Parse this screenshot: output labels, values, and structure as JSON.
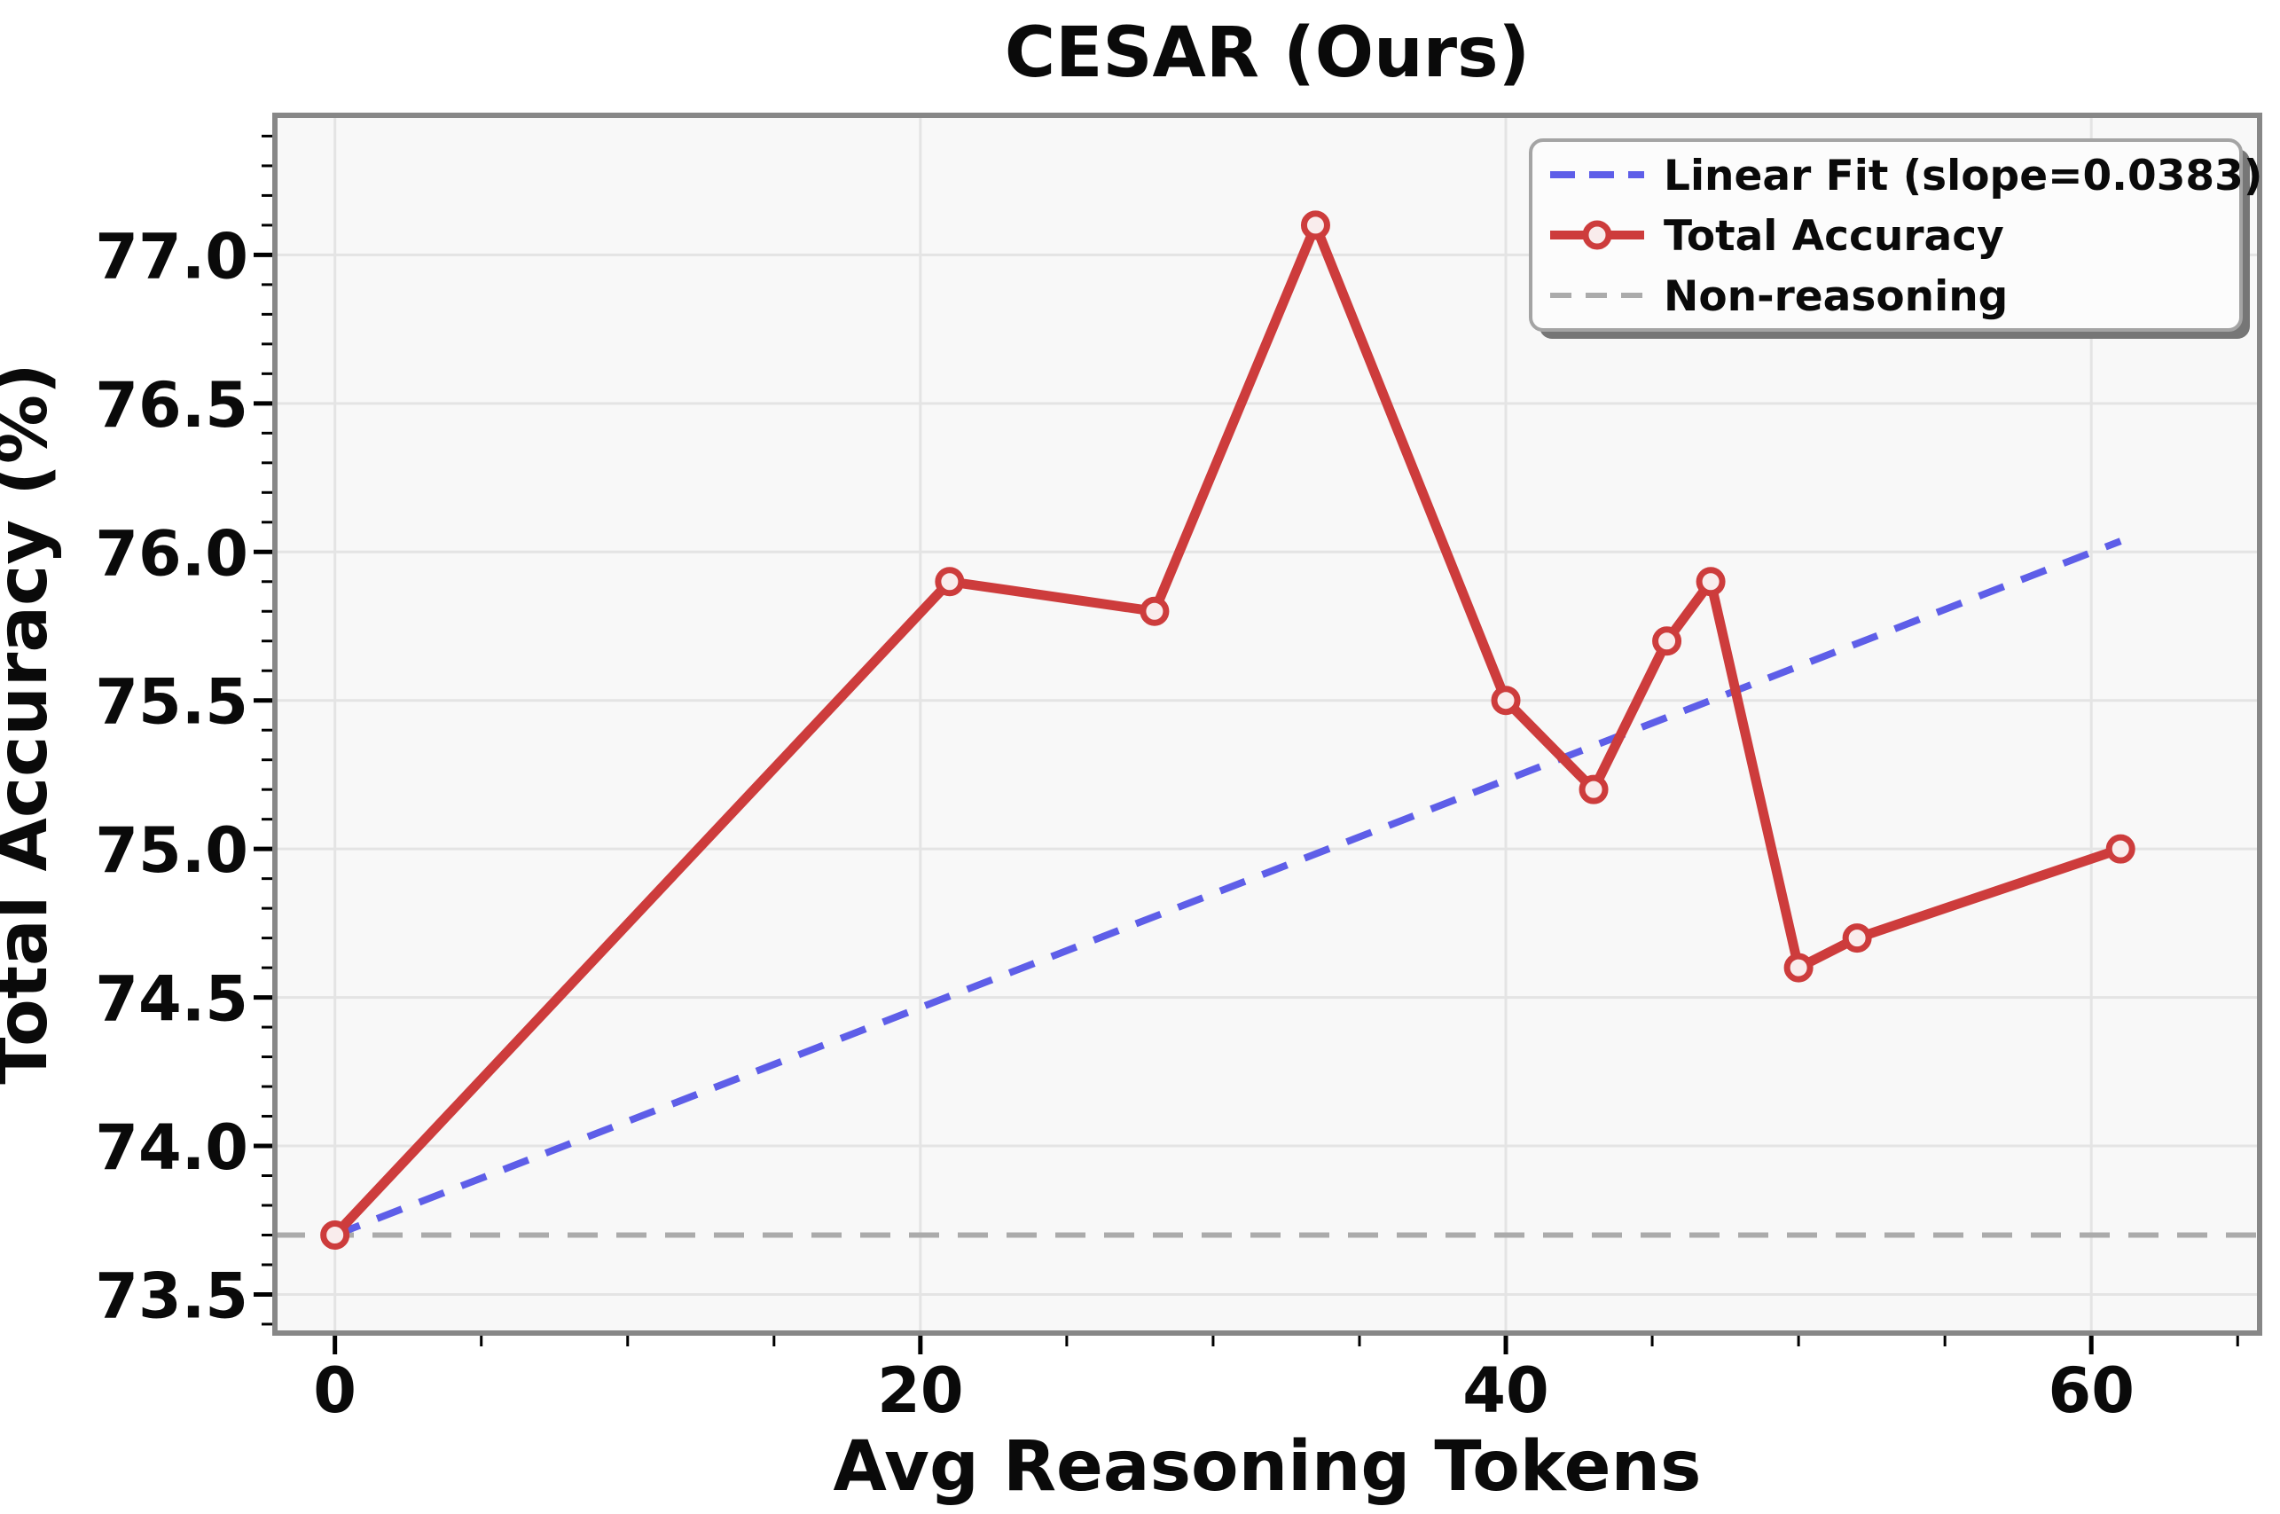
{
  "figure": {
    "title": "CESAR (Ours)"
  },
  "chart_data": {
    "type": "line",
    "title": "CESAR (Ours)",
    "xlabel": "Avg Reasoning Tokens",
    "ylabel": "Total Accuracy (%)",
    "xlim": [
      -2.05,
      65.75
    ],
    "ylim": [
      73.37,
      77.47
    ],
    "xticks_major": [
      0,
      20,
      40,
      60
    ],
    "xticks_minor_step": 5,
    "yticks_major": [
      73.5,
      74.0,
      74.5,
      75.0,
      75.5,
      76.0,
      76.5,
      77.0
    ],
    "yticks_minor_step": 0.1,
    "ytick_format": "fixed1",
    "grid": "major-only",
    "legend_position": "upper-right",
    "legend": [
      "Linear Fit (slope=0.0383)",
      "Total Accuracy",
      "Non-reasoning"
    ],
    "series": [
      {
        "name": "Total Accuracy",
        "kind": "line-markers",
        "color": "#cd3c3c",
        "marker": "circle",
        "marker_fill": "#f9ecec",
        "x": [
          0,
          21,
          28,
          33.5,
          40,
          43,
          45.5,
          47,
          50,
          52,
          61
        ],
        "y": [
          73.7,
          75.9,
          75.8,
          77.1,
          75.5,
          75.2,
          75.7,
          75.9,
          74.6,
          74.7,
          75.0
        ]
      },
      {
        "name": "Linear Fit (slope=0.0383)",
        "kind": "linear-fit-dashed",
        "color": "#5e5ee8",
        "slope": 0.0383,
        "intercept": 73.7,
        "x_range": [
          0,
          61
        ]
      },
      {
        "name": "Non-reasoning",
        "kind": "hline-dashed",
        "color": "#ababab",
        "y": 73.7
      }
    ]
  },
  "colors": {
    "accuracy_line": "#cd3c3c",
    "marker_fill": "#f9ecec",
    "fit_line": "#5e5ee8",
    "baseline": "#ababab",
    "grid": "#e4e4e4",
    "axes_bg": "#f8f8f8",
    "spine": "#878787",
    "tick": "#000000",
    "legend_bg": "#fcfcfc",
    "legend_border": "#a4a4a4",
    "legend_shadow": "#767676"
  }
}
